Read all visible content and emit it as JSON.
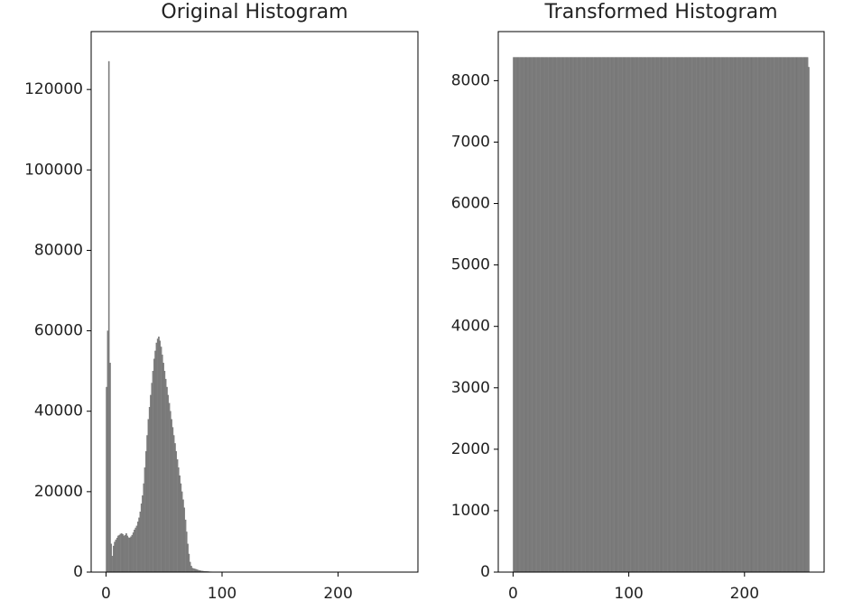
{
  "chart_data": [
    {
      "type": "histogram",
      "title": "Original Histogram",
      "color": "#808080",
      "xlim": [
        -12.8,
        268.8
      ],
      "xticks": [
        0,
        100,
        200
      ],
      "ylim": [
        0,
        134400
      ],
      "yticks": [
        0,
        20000,
        40000,
        60000,
        80000,
        100000,
        120000
      ],
      "bins": [
        0,
        1,
        2,
        3,
        4,
        5,
        6,
        7,
        8,
        9,
        10,
        11,
        12,
        13,
        14,
        15,
        16,
        17,
        18,
        19,
        20,
        21,
        22,
        23,
        24,
        25,
        26,
        27,
        28,
        29,
        30,
        31,
        32,
        33,
        34,
        35,
        36,
        37,
        38,
        39,
        40,
        41,
        42,
        43,
        44,
        45,
        46,
        47,
        48,
        49,
        50,
        51,
        52,
        53,
        54,
        55,
        56,
        57,
        58,
        59,
        60,
        61,
        62,
        63,
        64,
        65,
        66,
        67,
        68,
        69,
        70,
        71,
        72,
        73,
        74,
        75,
        76,
        77,
        78,
        79,
        80,
        81,
        82,
        83,
        84,
        85,
        86,
        87,
        88,
        89,
        90,
        91,
        92,
        93,
        94,
        95,
        96,
        97,
        98,
        99,
        100,
        101,
        102,
        103,
        104,
        105,
        106,
        107,
        108,
        109,
        110,
        111,
        112,
        113,
        114,
        115,
        116,
        117,
        118,
        119,
        120,
        121,
        122,
        123,
        124,
        125,
        126,
        127,
        128,
        129,
        130,
        131,
        132,
        133,
        134,
        135,
        136,
        137,
        138,
        139,
        140,
        141,
        142,
        143,
        144,
        145,
        146,
        147,
        148,
        149,
        150,
        151,
        152,
        153,
        154,
        155,
        156,
        157,
        158,
        159,
        160,
        161,
        162,
        163,
        164,
        165,
        166,
        167,
        168,
        169,
        170,
        171,
        172,
        173,
        174,
        175,
        176,
        177,
        178,
        179,
        180,
        181,
        182,
        183,
        184,
        185,
        186,
        187,
        188,
        189,
        190,
        191,
        192,
        193,
        194,
        195,
        196,
        197,
        198,
        199,
        200,
        201,
        202,
        203,
        204,
        205,
        206,
        207,
        208,
        209,
        210,
        211,
        212,
        213,
        214,
        215,
        216,
        217,
        218,
        219,
        220,
        221,
        222,
        223,
        224,
        225,
        226,
        227,
        228,
        229,
        230,
        231,
        232,
        233,
        234,
        235,
        236,
        237,
        238,
        239,
        240,
        241,
        242,
        243,
        244,
        245,
        246,
        247,
        248,
        249,
        250,
        251,
        252,
        253,
        254,
        255,
        256
      ],
      "values": [
        46000,
        60000,
        127000,
        52000,
        7000,
        4000,
        6500,
        7500,
        8000,
        8500,
        9000,
        9200,
        9500,
        9600,
        9400,
        9000,
        9200,
        9600,
        9000,
        8600,
        8500,
        8800,
        9200,
        9800,
        10500,
        11000,
        11500,
        12500,
        13500,
        15000,
        17000,
        19000,
        22000,
        26000,
        30000,
        34000,
        38000,
        41000,
        44000,
        47000,
        50000,
        53000,
        55000,
        57000,
        58000,
        58500,
        57500,
        56000,
        54000,
        52000,
        50000,
        48000,
        46000,
        44000,
        42000,
        40000,
        38000,
        36000,
        34000,
        32000,
        30000,
        28000,
        26000,
        24000,
        22000,
        20000,
        18000,
        16000,
        13000,
        10000,
        7000,
        4500,
        2500,
        1500,
        1000,
        900,
        800,
        700,
        600,
        500,
        400,
        350,
        300,
        250,
        200,
        180,
        160,
        140,
        120,
        100,
        90,
        80,
        70,
        60,
        50,
        40,
        35,
        30,
        25,
        20,
        18,
        15,
        12,
        10,
        8,
        6,
        5,
        4,
        3,
        2,
        1,
        1,
        0,
        0,
        0,
        0,
        0,
        0,
        0,
        0,
        0,
        0,
        0,
        0,
        0,
        0,
        0,
        0,
        0,
        0,
        0,
        0,
        0,
        0,
        0,
        0,
        0,
        0,
        0,
        0,
        0,
        0,
        0,
        0,
        0,
        0,
        0,
        0,
        0,
        0,
        0,
        0,
        0,
        0,
        0,
        0,
        0,
        0,
        0,
        0,
        0,
        0,
        0,
        0,
        0,
        0,
        0,
        0,
        0,
        0,
        0,
        0,
        0,
        0,
        0,
        0,
        0,
        0,
        0,
        0,
        0,
        0,
        0,
        0,
        0,
        0,
        0,
        0,
        0,
        0,
        0,
        0,
        0,
        0,
        0,
        0,
        0,
        0,
        0,
        0,
        0,
        0,
        0,
        0,
        0,
        0,
        0,
        0,
        0,
        0,
        0,
        0,
        0,
        0,
        0,
        0,
        0,
        0,
        0,
        0,
        0,
        0,
        0,
        0,
        0,
        0,
        0,
        0,
        0,
        0,
        0,
        0,
        0,
        0,
        0,
        0,
        0,
        0,
        0,
        0,
        0,
        0,
        0,
        0,
        0,
        0,
        0,
        0,
        0,
        0,
        0,
        0,
        0,
        0,
        0,
        0
      ]
    },
    {
      "type": "histogram",
      "title": "Transformed Histogram",
      "color": "#808080",
      "xlim": [
        -12.8,
        268.8
      ],
      "xticks": [
        0,
        100,
        200
      ],
      "ylim": [
        0,
        8799
      ],
      "yticks": [
        0,
        1000,
        2000,
        3000,
        4000,
        5000,
        6000,
        7000,
        8000
      ],
      "bins": [
        0,
        1,
        2,
        3,
        4,
        5,
        6,
        7,
        8,
        9,
        10,
        11,
        12,
        13,
        14,
        15,
        16,
        17,
        18,
        19,
        20,
        21,
        22,
        23,
        24,
        25,
        26,
        27,
        28,
        29,
        30,
        31,
        32,
        33,
        34,
        35,
        36,
        37,
        38,
        39,
        40,
        41,
        42,
        43,
        44,
        45,
        46,
        47,
        48,
        49,
        50,
        51,
        52,
        53,
        54,
        55,
        56,
        57,
        58,
        59,
        60,
        61,
        62,
        63,
        64,
        65,
        66,
        67,
        68,
        69,
        70,
        71,
        72,
        73,
        74,
        75,
        76,
        77,
        78,
        79,
        80,
        81,
        82,
        83,
        84,
        85,
        86,
        87,
        88,
        89,
        90,
        91,
        92,
        93,
        94,
        95,
        96,
        97,
        98,
        99,
        100,
        101,
        102,
        103,
        104,
        105,
        106,
        107,
        108,
        109,
        110,
        111,
        112,
        113,
        114,
        115,
        116,
        117,
        118,
        119,
        120,
        121,
        122,
        123,
        124,
        125,
        126,
        127,
        128,
        129,
        130,
        131,
        132,
        133,
        134,
        135,
        136,
        137,
        138,
        139,
        140,
        141,
        142,
        143,
        144,
        145,
        146,
        147,
        148,
        149,
        150,
        151,
        152,
        153,
        154,
        155,
        156,
        157,
        158,
        159,
        160,
        161,
        162,
        163,
        164,
        165,
        166,
        167,
        168,
        169,
        170,
        171,
        172,
        173,
        174,
        175,
        176,
        177,
        178,
        179,
        180,
        181,
        182,
        183,
        184,
        185,
        186,
        187,
        188,
        189,
        190,
        191,
        192,
        193,
        194,
        195,
        196,
        197,
        198,
        199,
        200,
        201,
        202,
        203,
        204,
        205,
        206,
        207,
        208,
        209,
        210,
        211,
        212,
        213,
        214,
        215,
        216,
        217,
        218,
        219,
        220,
        221,
        222,
        223,
        224,
        225,
        226,
        227,
        228,
        229,
        230,
        231,
        232,
        233,
        234,
        235,
        236,
        237,
        238,
        239,
        240,
        241,
        242,
        243,
        244,
        245,
        246,
        247,
        248,
        249,
        250,
        251,
        252,
        253,
        254,
        255,
        256
      ],
      "values": [
        8380,
        8380,
        8380,
        8380,
        8380,
        8380,
        8380,
        8380,
        8380,
        8380,
        8380,
        8380,
        8380,
        8380,
        8380,
        8380,
        8380,
        8380,
        8380,
        8380,
        8380,
        8380,
        8380,
        8380,
        8380,
        8380,
        8380,
        8380,
        8380,
        8380,
        8380,
        8380,
        8380,
        8380,
        8380,
        8380,
        8380,
        8380,
        8380,
        8380,
        8380,
        8380,
        8380,
        8380,
        8380,
        8380,
        8380,
        8380,
        8380,
        8380,
        8380,
        8380,
        8380,
        8380,
        8380,
        8380,
        8380,
        8380,
        8380,
        8380,
        8380,
        8380,
        8380,
        8380,
        8380,
        8380,
        8380,
        8380,
        8380,
        8380,
        8380,
        8380,
        8380,
        8380,
        8380,
        8380,
        8380,
        8380,
        8380,
        8380,
        8380,
        8380,
        8380,
        8380,
        8380,
        8380,
        8380,
        8380,
        8380,
        8380,
        8380,
        8380,
        8380,
        8380,
        8380,
        8380,
        8380,
        8380,
        8380,
        8380,
        8380,
        8380,
        8380,
        8380,
        8380,
        8380,
        8380,
        8380,
        8380,
        8380,
        8380,
        8380,
        8380,
        8380,
        8380,
        8380,
        8380,
        8380,
        8380,
        8380,
        8380,
        8380,
        8380,
        8380,
        8380,
        8380,
        8380,
        8380,
        8380,
        8380,
        8380,
        8380,
        8380,
        8380,
        8380,
        8380,
        8380,
        8380,
        8380,
        8380,
        8380,
        8380,
        8380,
        8380,
        8380,
        8380,
        8380,
        8380,
        8380,
        8380,
        8380,
        8380,
        8380,
        8380,
        8380,
        8380,
        8380,
        8380,
        8380,
        8380,
        8380,
        8380,
        8380,
        8380,
        8380,
        8380,
        8380,
        8380,
        8380,
        8380,
        8380,
        8380,
        8380,
        8380,
        8380,
        8380,
        8380,
        8380,
        8380,
        8380,
        8380,
        8380,
        8380,
        8380,
        8380,
        8380,
        8380,
        8380,
        8380,
        8380,
        8380,
        8380,
        8380,
        8380,
        8380,
        8380,
        8380,
        8380,
        8380,
        8380,
        8380,
        8380,
        8380,
        8380,
        8380,
        8380,
        8380,
        8380,
        8380,
        8380,
        8380,
        8380,
        8380,
        8380,
        8380,
        8380,
        8380,
        8380,
        8380,
        8380,
        8380,
        8380,
        8380,
        8380,
        8380,
        8380,
        8380,
        8380,
        8380,
        8380,
        8380,
        8380,
        8380,
        8380,
        8380,
        8380,
        8380,
        8380,
        8380,
        8380,
        8380,
        8380,
        8380,
        8380,
        8380,
        8380,
        8380,
        8380,
        8380,
        8380,
        8380,
        8380,
        8380,
        8380,
        8380,
        8220
      ]
    }
  ]
}
